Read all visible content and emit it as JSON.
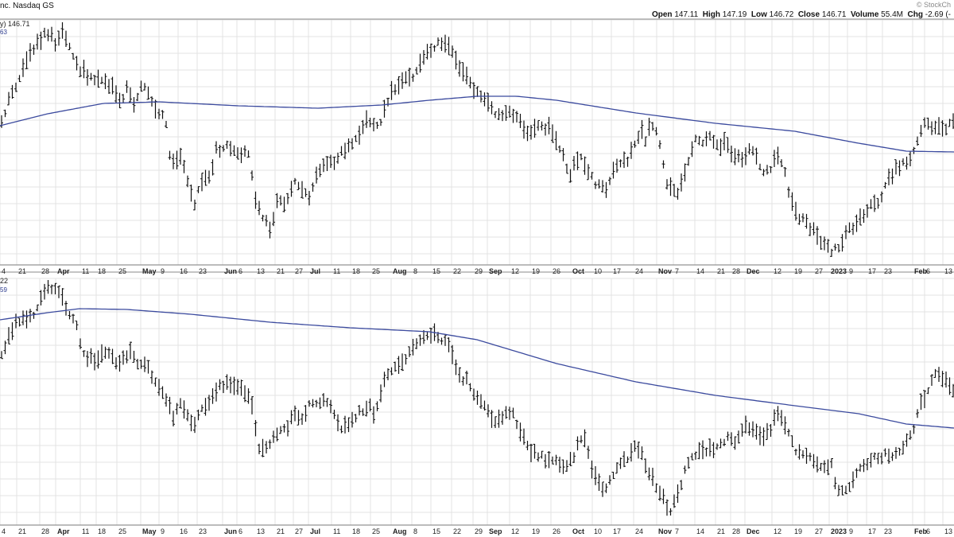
{
  "header": {
    "title": "nc. Nasdaq GS",
    "brand": "© StockCh",
    "ohlc": [
      {
        "label": "Open",
        "value": "147.11"
      },
      {
        "label": "High",
        "value": "147.19"
      },
      {
        "label": "Low",
        "value": "146.72"
      },
      {
        "label": "Close",
        "value": "146.71"
      },
      {
        "label": "Volume",
        "value": "55.4M"
      },
      {
        "label": "Chg",
        "value": "-2.69 (-"
      }
    ]
  },
  "panels": {
    "top": {
      "price_label": "y) 146.71",
      "ma_label": "63"
    },
    "bottom": {
      "price_label": "22",
      "ma_label": "59"
    }
  },
  "colors": {
    "bars": "#111111",
    "ma": "#3b4a9e",
    "grid": "#e3e3e3",
    "axis": "#7a7a7a"
  },
  "chart_data": [
    {
      "type": "line",
      "name": "top-panel",
      "x_ticks": [
        "4",
        "21",
        "28",
        "Apr",
        "11",
        "18",
        "25",
        "May",
        "9",
        "16",
        "23",
        "Jun",
        "6",
        "13",
        "21",
        "27",
        "Jul",
        "11",
        "18",
        "25",
        "Aug",
        "8",
        "15",
        "22",
        "29",
        "Sep",
        "12",
        "19",
        "26",
        "Oct",
        "10",
        "17",
        "24",
        "Nov",
        "7",
        "14",
        "21",
        "28",
        "Dec",
        "12",
        "19",
        "27",
        "2023",
        "9",
        "17",
        "23",
        "Feb",
        "6",
        "13"
      ],
      "bold_ticks": [
        "Apr",
        "May",
        "Jun",
        "Jul",
        "Aug",
        "Sep",
        "Oct",
        "Nov",
        "Dec",
        "2023",
        "Feb"
      ],
      "price_bar_anchors": [
        [
          0,
          158
        ],
        [
          12,
          125
        ],
        [
          22,
          104
        ],
        [
          35,
          72
        ],
        [
          48,
          55
        ],
        [
          58,
          38
        ],
        [
          70,
          55
        ],
        [
          78,
          40
        ],
        [
          90,
          68
        ],
        [
          100,
          88
        ],
        [
          115,
          98
        ],
        [
          128,
          100
        ],
        [
          140,
          108
        ],
        [
          152,
          128
        ],
        [
          160,
          112
        ],
        [
          170,
          132
        ],
        [
          180,
          105
        ],
        [
          190,
          130
        ],
        [
          200,
          140
        ],
        [
          210,
          155
        ],
        [
          215,
          210
        ],
        [
          228,
          200
        ],
        [
          238,
          235
        ],
        [
          245,
          258
        ],
        [
          252,
          228
        ],
        [
          265,
          220
        ],
        [
          272,
          190
        ],
        [
          285,
          182
        ],
        [
          300,
          192
        ],
        [
          315,
          195
        ],
        [
          318,
          240
        ],
        [
          326,
          265
        ],
        [
          332,
          275
        ],
        [
          340,
          290
        ],
        [
          350,
          250
        ],
        [
          360,
          258
        ],
        [
          370,
          228
        ],
        [
          380,
          242
        ],
        [
          390,
          248
        ],
        [
          400,
          218
        ],
        [
          410,
          205
        ],
        [
          420,
          208
        ],
        [
          430,
          192
        ],
        [
          440,
          185
        ],
        [
          450,
          175
        ],
        [
          460,
          152
        ],
        [
          470,
          160
        ],
        [
          480,
          150
        ],
        [
          485,
          138
        ],
        [
          492,
          118
        ],
        [
          500,
          108
        ],
        [
          510,
          95
        ],
        [
          520,
          100
        ],
        [
          530,
          78
        ],
        [
          540,
          62
        ],
        [
          555,
          52
        ],
        [
          565,
          62
        ],
        [
          575,
          80
        ],
        [
          588,
          95
        ],
        [
          595,
          118
        ],
        [
          605,
          120
        ],
        [
          615,
          135
        ],
        [
          625,
          148
        ],
        [
          635,
          140
        ],
        [
          645,
          142
        ],
        [
          655,
          155
        ],
        [
          665,
          170
        ],
        [
          680,
          158
        ],
        [
          690,
          162
        ],
        [
          700,
          180
        ],
        [
          710,
          200
        ],
        [
          716,
          228
        ],
        [
          722,
          208
        ],
        [
          732,
          198
        ],
        [
          742,
          222
        ],
        [
          752,
          235
        ],
        [
          762,
          240
        ],
        [
          770,
          218
        ],
        [
          780,
          208
        ],
        [
          790,
          200
        ],
        [
          800,
          178
        ],
        [
          808,
          162
        ],
        [
          812,
          175
        ],
        [
          820,
          155
        ],
        [
          830,
          180
        ],
        [
          838,
          230
        ],
        [
          845,
          238
        ],
        [
          852,
          248
        ],
        [
          858,
          225
        ],
        [
          865,
          205
        ],
        [
          875,
          178
        ],
        [
          885,
          178
        ],
        [
          895,
          172
        ],
        [
          905,
          185
        ],
        [
          912,
          178
        ],
        [
          920,
          192
        ],
        [
          932,
          200
        ],
        [
          940,
          192
        ],
        [
          948,
          188
        ],
        [
          955,
          210
        ],
        [
          962,
          215
        ],
        [
          970,
          210
        ],
        [
          978,
          195
        ],
        [
          988,
          220
        ],
        [
          995,
          255
        ],
        [
          1005,
          272
        ],
        [
          1015,
          282
        ],
        [
          1022,
          290
        ],
        [
          1030,
          300
        ],
        [
          1040,
          310
        ],
        [
          1046,
          322
        ],
        [
          1052,
          312
        ],
        [
          1058,
          308
        ],
        [
          1065,
          290
        ],
        [
          1075,
          285
        ],
        [
          1085,
          272
        ],
        [
          1095,
          260
        ],
        [
          1105,
          255
        ],
        [
          1112,
          238
        ],
        [
          1120,
          222
        ],
        [
          1130,
          210
        ],
        [
          1140,
          205
        ],
        [
          1148,
          198
        ],
        [
          1155,
          175
        ],
        [
          1162,
          155
        ],
        [
          1170,
          160
        ],
        [
          1180,
          158
        ],
        [
          1190,
          160
        ],
        [
          1200,
          152
        ]
      ],
      "ma_anchors": [
        [
          0,
          158
        ],
        [
          60,
          143
        ],
        [
          130,
          130
        ],
        [
          200,
          128
        ],
        [
          300,
          133
        ],
        [
          400,
          136
        ],
        [
          480,
          132
        ],
        [
          540,
          126
        ],
        [
          600,
          121
        ],
        [
          650,
          121
        ],
        [
          700,
          126
        ],
        [
          800,
          142
        ],
        [
          900,
          155
        ],
        [
          1000,
          165
        ],
        [
          1080,
          180
        ],
        [
          1140,
          190
        ],
        [
          1200,
          191
        ]
      ]
    },
    {
      "type": "line",
      "name": "bottom-panel",
      "x_ticks": [
        "4",
        "21",
        "28",
        "Apr",
        "11",
        "18",
        "25",
        "May",
        "9",
        "16",
        "23",
        "Jun",
        "6",
        "13",
        "21",
        "27",
        "Jul",
        "11",
        "18",
        "25",
        "Aug",
        "8",
        "15",
        "22",
        "29",
        "Sep",
        "12",
        "19",
        "26",
        "Oct",
        "10",
        "17",
        "24",
        "Nov",
        "7",
        "14",
        "21",
        "28",
        "Dec",
        "12",
        "19",
        "27",
        "2023",
        "9",
        "17",
        "23",
        "Feb",
        "6",
        "13"
      ],
      "bold_ticks": [
        "Apr",
        "May",
        "Jun",
        "Jul",
        "Aug",
        "Sep",
        "Oct",
        "Nov",
        "Dec",
        "2023",
        "Feb"
      ],
      "price_bar_anchors": [
        [
          0,
          455
        ],
        [
          10,
          425
        ],
        [
          20,
          408
        ],
        [
          35,
          398
        ],
        [
          45,
          395
        ],
        [
          55,
          370
        ],
        [
          62,
          360
        ],
        [
          72,
          368
        ],
        [
          80,
          378
        ],
        [
          88,
          400
        ],
        [
          96,
          405
        ],
        [
          102,
          440
        ],
        [
          110,
          450
        ],
        [
          120,
          455
        ],
        [
          130,
          448
        ],
        [
          140,
          440
        ],
        [
          148,
          468
        ],
        [
          155,
          450
        ],
        [
          165,
          445
        ],
        [
          175,
          458
        ],
        [
          185,
          462
        ],
        [
          195,
          478
        ],
        [
          203,
          495
        ],
        [
          210,
          505
        ],
        [
          218,
          525
        ],
        [
          226,
          510
        ],
        [
          235,
          520
        ],
        [
          243,
          535
        ],
        [
          252,
          520
        ],
        [
          260,
          508
        ],
        [
          268,
          498
        ],
        [
          275,
          488
        ],
        [
          285,
          482
        ],
        [
          295,
          485
        ],
        [
          305,
          492
        ],
        [
          315,
          500
        ],
        [
          320,
          530
        ],
        [
          326,
          565
        ],
        [
          334,
          560
        ],
        [
          342,
          555
        ],
        [
          350,
          545
        ],
        [
          360,
          540
        ],
        [
          370,
          520
        ],
        [
          380,
          525
        ],
        [
          390,
          510
        ],
        [
          400,
          505
        ],
        [
          410,
          500
        ],
        [
          420,
          520
        ],
        [
          428,
          545
        ],
        [
          435,
          535
        ],
        [
          445,
          525
        ],
        [
          455,
          518
        ],
        [
          463,
          510
        ],
        [
          471,
          520
        ],
        [
          480,
          490
        ],
        [
          488,
          470
        ],
        [
          497,
          460
        ],
        [
          505,
          455
        ],
        [
          512,
          452
        ],
        [
          518,
          440
        ],
        [
          525,
          435
        ],
        [
          535,
          425
        ],
        [
          545,
          422
        ],
        [
          555,
          425
        ],
        [
          565,
          432
        ],
        [
          572,
          462
        ],
        [
          580,
          475
        ],
        [
          588,
          480
        ],
        [
          595,
          495
        ],
        [
          603,
          505
        ],
        [
          610,
          515
        ],
        [
          620,
          530
        ],
        [
          630,
          525
        ],
        [
          638,
          515
        ],
        [
          645,
          520
        ],
        [
          652,
          540
        ],
        [
          660,
          555
        ],
        [
          670,
          570
        ],
        [
          680,
          575
        ],
        [
          690,
          578
        ],
        [
          700,
          580
        ],
        [
          710,
          585
        ],
        [
          720,
          578
        ],
        [
          728,
          555
        ],
        [
          735,
          552
        ],
        [
          745,
          590
        ],
        [
          752,
          605
        ],
        [
          760,
          620
        ],
        [
          770,
          598
        ],
        [
          780,
          580
        ],
        [
          790,
          575
        ],
        [
          800,
          560
        ],
        [
          810,
          578
        ],
        [
          818,
          598
        ],
        [
          828,
          615
        ],
        [
          836,
          628
        ],
        [
          843,
          645
        ],
        [
          850,
          625
        ],
        [
          858,
          608
        ],
        [
          865,
          580
        ],
        [
          875,
          570
        ],
        [
          885,
          570
        ],
        [
          895,
          565
        ],
        [
          905,
          558
        ],
        [
          915,
          552
        ],
        [
          925,
          560
        ],
        [
          935,
          540
        ],
        [
          945,
          535
        ],
        [
          955,
          545
        ],
        [
          962,
          550
        ],
        [
          970,
          540
        ],
        [
          978,
          518
        ],
        [
          985,
          525
        ],
        [
          992,
          545
        ],
        [
          1000,
          565
        ],
        [
          1010,
          570
        ],
        [
          1020,
          578
        ],
        [
          1030,
          585
        ],
        [
          1040,
          588
        ],
        [
          1046,
          580
        ],
        [
          1050,
          608
        ],
        [
          1058,
          620
        ],
        [
          1066,
          612
        ],
        [
          1075,
          600
        ],
        [
          1085,
          585
        ],
        [
          1095,
          580
        ],
        [
          1105,
          575
        ],
        [
          1115,
          570
        ],
        [
          1125,
          575
        ],
        [
          1132,
          565
        ],
        [
          1140,
          555
        ],
        [
          1148,
          545
        ],
        [
          1155,
          515
        ],
        [
          1165,
          500
        ],
        [
          1172,
          478
        ],
        [
          1180,
          470
        ],
        [
          1190,
          482
        ],
        [
          1200,
          490
        ]
      ],
      "ma_anchors": [
        [
          0,
          402
        ],
        [
          60,
          393
        ],
        [
          100,
          388
        ],
        [
          160,
          389
        ],
        [
          240,
          395
        ],
        [
          340,
          405
        ],
        [
          440,
          412
        ],
        [
          540,
          417
        ],
        [
          600,
          427
        ],
        [
          700,
          457
        ],
        [
          800,
          480
        ],
        [
          900,
          497
        ],
        [
          1000,
          510
        ],
        [
          1080,
          520
        ],
        [
          1140,
          533
        ],
        [
          1200,
          538
        ]
      ]
    }
  ]
}
